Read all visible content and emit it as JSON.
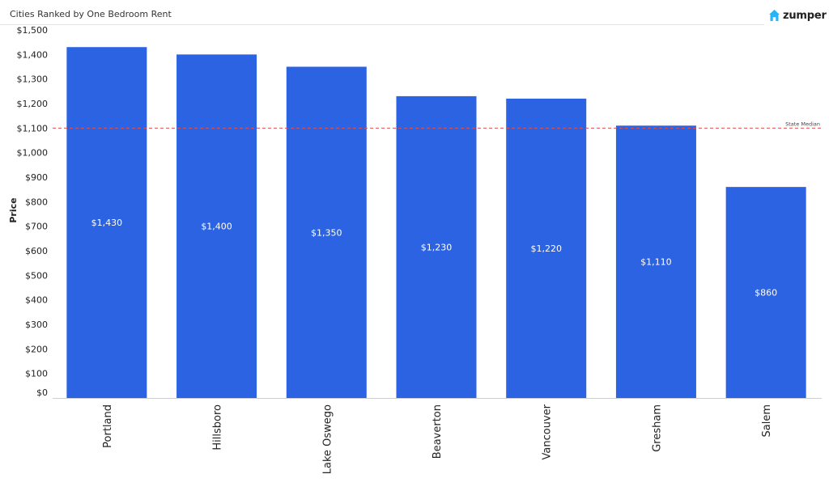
{
  "header": {
    "title": "Cities Ranked by One Bedroom Rent",
    "brand": "zumper",
    "brand_color": "#2ab3f5",
    "brand_icon": "house-icon"
  },
  "chart_data": {
    "type": "bar",
    "title": "Cities Ranked by One Bedroom Rent",
    "xlabel": "",
    "ylabel": "Price",
    "categories": [
      "Portland",
      "Hillsboro",
      "Lake Oswego",
      "Beaverton",
      "Vancouver",
      "Gresham",
      "Salem"
    ],
    "values": [
      1430,
      1400,
      1350,
      1230,
      1220,
      1110,
      860
    ],
    "data_labels": [
      "$1,430",
      "$1,400",
      "$1,350",
      "$1,230",
      "$1,220",
      "$1,110",
      "$860"
    ],
    "ylim": [
      0,
      1500
    ],
    "yticks": [
      0,
      100,
      200,
      300,
      400,
      500,
      600,
      700,
      800,
      900,
      1000,
      1100,
      1200,
      1300,
      1400,
      1500
    ],
    "ytick_labels": [
      "$0",
      "$100",
      "$200",
      "$300",
      "$400",
      "$500",
      "$600",
      "$700",
      "$800",
      "$900",
      "$1,000",
      "$1,100",
      "$1,200",
      "$1,300",
      "$1,400",
      "$1,500"
    ],
    "reference_line": {
      "value": 1100,
      "label": "State Median",
      "color": "#e05050",
      "style": "dashed"
    },
    "bar_color": "#2c63e3",
    "grid": false
  }
}
